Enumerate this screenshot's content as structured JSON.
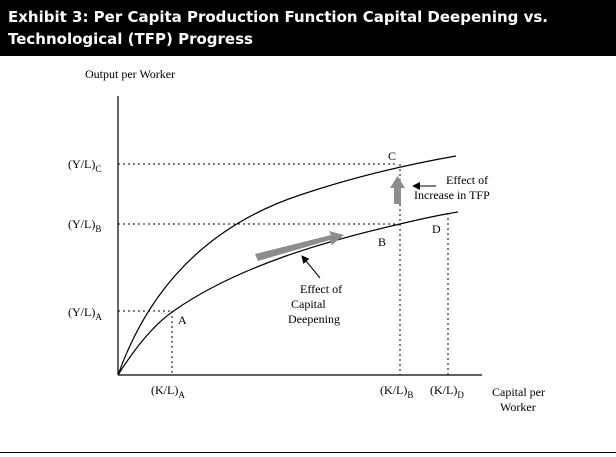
{
  "title": {
    "line1": "Exhibit 3: Per Capita Production Function Capital Deepening vs.",
    "line2": "Technological (TFP) Progress"
  },
  "axes": {
    "y_label": "Output per Worker",
    "x_label_line1": "Capital per",
    "x_label_line2": "Worker"
  },
  "y_ticks": [
    {
      "main": "(Y/L)",
      "sub": "C"
    },
    {
      "main": "(Y/L)",
      "sub": "B"
    },
    {
      "main": "(Y/L)",
      "sub": "A"
    }
  ],
  "x_ticks": [
    {
      "main": "(K/L)",
      "sub": "A"
    },
    {
      "main": "(K/L)",
      "sub": "B"
    },
    {
      "main": "(K/L)",
      "sub": "D"
    }
  ],
  "points": {
    "a": "A",
    "b": "B",
    "c": "C",
    "d": "D"
  },
  "annotations": {
    "tfp_line1": "Effect of",
    "tfp_line2": "Increase in TFP",
    "capital_line1": "Effect of",
    "capital_line2": "Capital",
    "capital_line3": "Deepening"
  }
}
